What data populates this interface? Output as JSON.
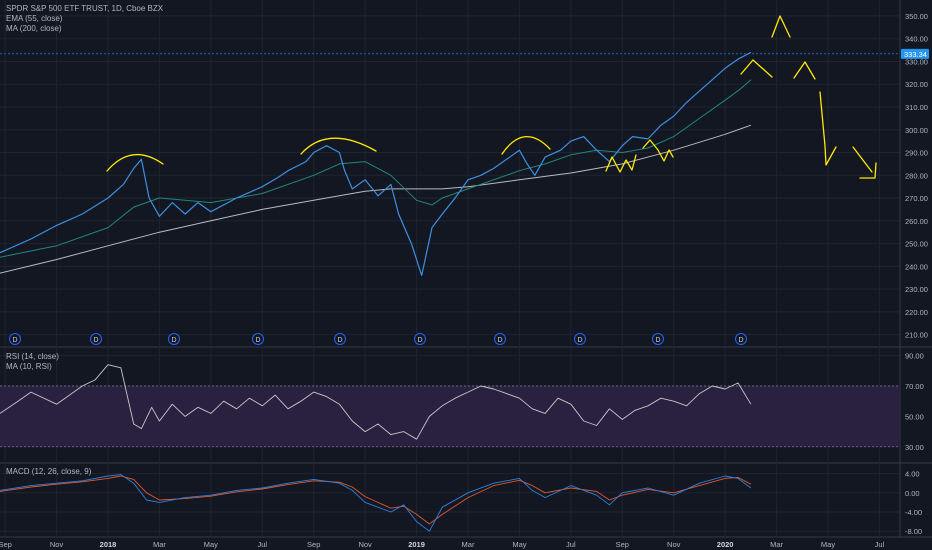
{
  "main_pane": {
    "title": "SPDR S&P 500 ETF TRUST, 1D, Cboe BZX",
    "indicator_1": "EMA (55, close)",
    "indicator_2": "MA (200, close)"
  },
  "rsi_pane": {
    "indicator_1": "RSI (14, close)",
    "indicator_2": "MA (10, RSI)"
  },
  "macd_pane": {
    "indicator_1": "MACD (12, 26, close, 9)"
  },
  "dividend_marker_label": "D",
  "colors": {
    "background": "#131722",
    "grid": "#1f2431",
    "price": "#3d8fe0",
    "ema": "#22877a",
    "ma200": "#b7bac2",
    "rsi_band": "#2a2040",
    "rsi_line": "#c8c8c8",
    "rsi_overbought": "#5ab55a",
    "macd": "#2f80e0",
    "signal": "#e0582c",
    "drawing": "#ffea00",
    "last_price_bg": "#2196f3"
  },
  "last_price_label": "333.34",
  "chart_data": [
    {
      "type": "line",
      "name": "price",
      "ylim": [
        205,
        357
      ],
      "yticks": [
        "210.00",
        "220.00",
        "230.00",
        "240.00",
        "250.00",
        "260.00",
        "270.00",
        "280.00",
        "290.00",
        "300.00",
        "310.00",
        "320.00",
        "330.00",
        "340.00",
        "350.00"
      ],
      "ytick_values": [
        210,
        220,
        230,
        240,
        250,
        260,
        270,
        280,
        290,
        300,
        310,
        320,
        330,
        340,
        350
      ],
      "x_labels": [
        "Sep",
        "Nov",
        "2018",
        "Mar",
        "May",
        "Jul",
        "Sep",
        "Nov",
        "2019",
        "Mar",
        "May",
        "Jul",
        "Sep",
        "Nov",
        "2020",
        "Mar",
        "May",
        "Jul"
      ],
      "x_labels_bold": [
        "2018",
        "2019",
        "2020"
      ],
      "x_month_index": [
        0,
        2,
        4,
        6,
        8,
        10,
        12,
        14,
        16,
        18,
        20,
        22,
        24,
        26,
        28,
        30,
        32,
        34
      ],
      "x_range_months": [
        -0.2,
        34.8
      ],
      "series": [
        {
          "key": "spy",
          "x": [
            -0.2,
            1,
            2,
            3,
            4,
            4.6,
            5,
            5.3,
            5.6,
            6,
            6.5,
            7,
            7.5,
            8,
            9,
            10,
            10.6,
            11,
            11.7,
            12,
            12.5,
            13,
            13.2,
            13.5,
            14,
            14.5,
            15,
            15.3,
            15.8,
            16.2,
            16.6,
            17,
            17.5,
            18,
            18.5,
            19,
            19.5,
            20,
            20.3,
            20.6,
            21,
            21.6,
            22,
            22.5,
            23,
            23.5,
            24,
            24.4,
            25,
            25.5,
            26,
            26.5,
            27,
            27.5,
            28,
            28.5,
            29
          ],
          "y": [
            246,
            252,
            258,
            263,
            270,
            276,
            283,
            287,
            270,
            262,
            268,
            263,
            268,
            264,
            270,
            275,
            279,
            282,
            286,
            290,
            293,
            290,
            282,
            274,
            278,
            271,
            276,
            263,
            250,
            236,
            257,
            263,
            270,
            278,
            280,
            283,
            287,
            291,
            285,
            280,
            288,
            291,
            295,
            297,
            291,
            286,
            293,
            297,
            296,
            302,
            306,
            312,
            317,
            322,
            327,
            331,
            334
          ]
        },
        {
          "key": "ema55",
          "x": [
            -0.2,
            2,
            4,
            5,
            6,
            7,
            8,
            10,
            12,
            13,
            14,
            15,
            16,
            16.6,
            17,
            18,
            20,
            21,
            22,
            23,
            24,
            25,
            26,
            27,
            28,
            28.6,
            29
          ],
          "y": [
            244,
            249,
            257,
            266,
            270,
            269,
            268,
            272,
            280,
            285,
            286,
            280,
            269,
            267,
            270,
            274,
            282,
            285,
            289,
            291,
            290,
            292,
            297,
            305,
            313,
            318,
            322
          ]
        },
        {
          "key": "ma200",
          "x": [
            -0.2,
            2,
            4,
            6,
            8,
            10,
            12,
            14,
            15,
            16,
            17,
            18,
            20,
            22,
            24,
            26,
            28,
            29
          ],
          "y": [
            237,
            243,
            249,
            255,
            260,
            265,
            269,
            273,
            274,
            274,
            274,
            275,
            278,
            281,
            285,
            291,
            298,
            302
          ]
        }
      ]
    },
    {
      "type": "area",
      "name": "rsi",
      "ylim": [
        20,
        95
      ],
      "yticks": [
        "30.00",
        "50.00",
        "70.00",
        "90.00"
      ],
      "ytick_values": [
        30,
        50,
        70,
        90
      ],
      "band": [
        30,
        70
      ],
      "series": [
        {
          "key": "rsi",
          "x": [
            -0.2,
            0.5,
            1,
            2,
            3,
            3.5,
            4,
            4.5,
            5,
            5.3,
            5.7,
            6,
            6.5,
            7,
            7.5,
            8,
            8.5,
            9,
            9.5,
            10,
            10.5,
            11,
            11.5,
            12,
            12.5,
            13,
            13.5,
            14,
            14.5,
            15,
            15.5,
            16,
            16.5,
            17,
            17.5,
            18,
            18.5,
            19,
            19.5,
            20,
            20.5,
            21,
            21.5,
            22,
            22.5,
            23,
            23.5,
            24,
            24.5,
            25,
            25.5,
            26,
            26.5,
            27,
            27.5,
            28,
            28.5,
            29
          ],
          "y": [
            52,
            60,
            66,
            58,
            70,
            74,
            84,
            82,
            45,
            42,
            56,
            47,
            58,
            50,
            56,
            52,
            60,
            55,
            62,
            57,
            64,
            55,
            60,
            66,
            63,
            58,
            47,
            40,
            45,
            38,
            40,
            35,
            50,
            57,
            62,
            66,
            70,
            68,
            65,
            62,
            55,
            52,
            62,
            58,
            47,
            44,
            55,
            48,
            54,
            57,
            62,
            60,
            57,
            65,
            70,
            68,
            72,
            58
          ]
        }
      ]
    },
    {
      "type": "line",
      "name": "macd",
      "ylim": [
        -9,
        6
      ],
      "yticks": [
        "4.00",
        "0.00",
        "-4.00",
        "-8.00"
      ],
      "ytick_values": [
        4,
        0,
        -4,
        -8
      ],
      "series": [
        {
          "key": "macd",
          "x": [
            -0.2,
            1,
            2,
            3,
            4,
            4.5,
            5,
            5.5,
            6,
            7,
            8,
            9,
            10,
            11,
            12,
            13,
            13.5,
            14,
            14.5,
            15,
            15.5,
            16,
            16.5,
            17,
            18,
            19,
            20,
            20.5,
            21,
            22,
            23,
            23.5,
            24,
            25,
            26,
            27,
            28,
            28.5,
            29
          ],
          "y": [
            0.5,
            1.5,
            2,
            2.5,
            3.5,
            3.8,
            2,
            -1.5,
            -2,
            -1,
            -0.5,
            0.5,
            1,
            2,
            2.8,
            2,
            0.5,
            -2,
            -3,
            -4,
            -2.5,
            -6,
            -8,
            -3,
            0,
            2,
            3,
            0.5,
            -1,
            1.5,
            -0.5,
            -2.5,
            0,
            1,
            -0.5,
            2,
            3.5,
            3,
            1
          ]
        },
        {
          "key": "signal",
          "x": [
            -0.2,
            1,
            2,
            3,
            4,
            4.5,
            5,
            5.5,
            6,
            7,
            8,
            9,
            10,
            11,
            12,
            13,
            13.5,
            14,
            14.5,
            15,
            15.5,
            16,
            16.5,
            17,
            18,
            19,
            20,
            20.5,
            21,
            22,
            23,
            23.5,
            24,
            25,
            26,
            27,
            28,
            28.5,
            29
          ],
          "y": [
            0.3,
            1.2,
            1.8,
            2.3,
            3,
            3.5,
            2.8,
            0,
            -1.5,
            -1.2,
            -0.7,
            0.2,
            0.8,
            1.7,
            2.5,
            2.2,
            1.2,
            -0.8,
            -2,
            -3.2,
            -2.8,
            -4.5,
            -6.5,
            -4.5,
            -1,
            1.5,
            2.6,
            1.5,
            0,
            1,
            0.3,
            -1.5,
            -0.5,
            0.7,
            0,
            1.5,
            3,
            3.2,
            1.8
          ]
        }
      ]
    }
  ]
}
